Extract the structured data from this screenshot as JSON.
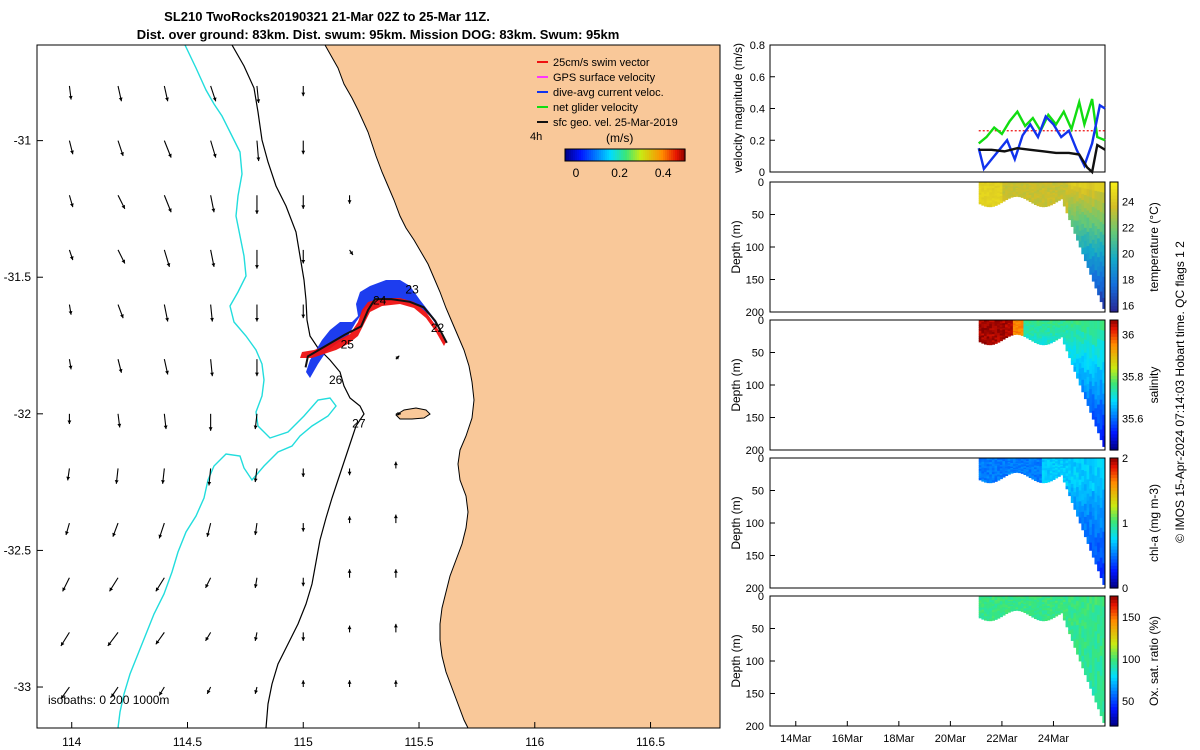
{
  "title_line1": "SL210 TwoRocks20190321 21-Mar 02Z to 25-Mar 11Z.",
  "title_line2": "Dist. over ground: 83km. Dist. swum: 95km. Mission DOG: 83km. Swum: 95km",
  "credit": "© IMOS 15-Apr-2024 07:14:03 Hobart time. QC flags 1 2",
  "colors": {
    "land": "#F9C899",
    "isobath_200": "#000000",
    "isobath_1000": "#22DDDD",
    "swim_vector": "#EE1111",
    "gps_velocity": "#FF33FF",
    "dive_avg_current": "#1133EE",
    "net_glider": "#11DD11",
    "sfc_geo_vel": "#111111"
  },
  "chart_data": [
    {
      "type": "map",
      "name": "track-map",
      "x_ticks": [
        "114",
        "114.5",
        "115",
        "115.5",
        "116",
        "116.5"
      ],
      "x_tick_values": [
        114,
        114.5,
        115,
        115.5,
        116,
        116.5
      ],
      "y_ticks": [
        "-31",
        "-31.5",
        "-32",
        "-32.5",
        "-33"
      ],
      "y_tick_values": [
        -31,
        -31.5,
        -32,
        -32.5,
        -33
      ],
      "xlim": [
        113.85,
        116.8
      ],
      "ylim": [
        -33.15,
        -30.65
      ],
      "legend": {
        "position": "top-right",
        "entries": [
          {
            "label": "25cm/s swim vector",
            "color_key": "swim_vector"
          },
          {
            "label": "GPS surface velocity",
            "color_key": "gps_velocity"
          },
          {
            "label": "dive-avg current veloc.",
            "color_key": "dive_avg_current"
          },
          {
            "label": "net glider velocity",
            "color_key": "net_glider"
          },
          {
            "label": "sfc geo. vel. 25-Mar-2019",
            "color_key": "sfc_geo_vel"
          }
        ]
      },
      "vector_stride_label": "4h",
      "colorbar": {
        "label": "(m/s)",
        "ticks": [
          "0",
          "0.2",
          "0.4"
        ],
        "tick_values": [
          0,
          0.2,
          0.4
        ],
        "range": [
          -0.05,
          0.5
        ]
      },
      "isobath_label": "isobaths: 0   200  1000m",
      "day_labels": [
        {
          "text": "22",
          "lon": 115.58,
          "lat": -31.7
        },
        {
          "text": "23",
          "lon": 115.47,
          "lat": -31.56
        },
        {
          "text": "24",
          "lon": 115.33,
          "lat": -31.6
        },
        {
          "text": "25",
          "lon": 115.19,
          "lat": -31.76
        },
        {
          "text": "26",
          "lon": 115.14,
          "lat": -31.89
        },
        {
          "text": "27",
          "lon": 115.24,
          "lat": -32.05
        }
      ],
      "track": [
        [
          115.62,
          -31.74
        ],
        [
          115.57,
          -31.66
        ],
        [
          115.52,
          -31.61
        ],
        [
          115.46,
          -31.59
        ],
        [
          115.38,
          -31.58
        ],
        [
          115.31,
          -31.58
        ],
        [
          115.28,
          -31.62
        ],
        [
          115.25,
          -31.68
        ],
        [
          115.18,
          -31.71
        ],
        [
          115.1,
          -31.75
        ],
        [
          115.02,
          -31.79
        ],
        [
          115.01,
          -31.83
        ]
      ],
      "vectors": [
        {
          "lon": 113.99,
          "lat": -30.8,
          "u": 0.01,
          "v": -0.08
        },
        {
          "lon": 114.2,
          "lat": -30.8,
          "u": 0.02,
          "v": -0.09
        },
        {
          "lon": 114.4,
          "lat": -30.8,
          "u": 0.02,
          "v": -0.09
        },
        {
          "lon": 114.6,
          "lat": -30.8,
          "u": 0.03,
          "v": -0.09
        },
        {
          "lon": 114.8,
          "lat": -30.8,
          "u": 0.01,
          "v": -0.1
        },
        {
          "lon": 115,
          "lat": -30.8,
          "u": 0.0,
          "v": -0.06
        },
        {
          "lon": 113.99,
          "lat": -31.0,
          "u": 0.02,
          "v": -0.08
        },
        {
          "lon": 114.2,
          "lat": -31.0,
          "u": 0.03,
          "v": -0.09
        },
        {
          "lon": 114.4,
          "lat": -31.0,
          "u": 0.04,
          "v": -0.1
        },
        {
          "lon": 114.6,
          "lat": -31.0,
          "u": 0.03,
          "v": -0.1
        },
        {
          "lon": 114.8,
          "lat": -31.0,
          "u": 0.01,
          "v": -0.12
        },
        {
          "lon": 115,
          "lat": -31.0,
          "u": 0.0,
          "v": -0.08
        },
        {
          "lon": 113.99,
          "lat": -31.2,
          "u": 0.02,
          "v": -0.07
        },
        {
          "lon": 114.2,
          "lat": -31.2,
          "u": 0.04,
          "v": -0.08
        },
        {
          "lon": 114.4,
          "lat": -31.2,
          "u": 0.04,
          "v": -0.1
        },
        {
          "lon": 114.6,
          "lat": -31.2,
          "u": 0.02,
          "v": -0.1
        },
        {
          "lon": 114.8,
          "lat": -31.2,
          "u": 0.0,
          "v": -0.11
        },
        {
          "lon": 115,
          "lat": -31.2,
          "u": 0.0,
          "v": -0.08
        },
        {
          "lon": 115.2,
          "lat": -31.2,
          "u": 0.0,
          "v": -0.05
        },
        {
          "lon": 113.99,
          "lat": -31.4,
          "u": 0.02,
          "v": -0.06
        },
        {
          "lon": 114.2,
          "lat": -31.4,
          "u": 0.04,
          "v": -0.08
        },
        {
          "lon": 114.4,
          "lat": -31.4,
          "u": 0.03,
          "v": -0.1
        },
        {
          "lon": 114.6,
          "lat": -31.4,
          "u": 0.02,
          "v": -0.1
        },
        {
          "lon": 114.8,
          "lat": -31.4,
          "u": 0.0,
          "v": -0.11
        },
        {
          "lon": 115,
          "lat": -31.4,
          "u": 0.0,
          "v": -0.08
        },
        {
          "lon": 115.2,
          "lat": -31.4,
          "u": 0.02,
          "v": -0.03
        },
        {
          "lon": 113.99,
          "lat": -31.6,
          "u": 0.01,
          "v": -0.06
        },
        {
          "lon": 114.2,
          "lat": -31.6,
          "u": 0.03,
          "v": -0.08
        },
        {
          "lon": 114.4,
          "lat": -31.6,
          "u": 0.02,
          "v": -0.1
        },
        {
          "lon": 114.6,
          "lat": -31.6,
          "u": 0.01,
          "v": -0.1
        },
        {
          "lon": 114.8,
          "lat": -31.6,
          "u": 0.0,
          "v": -0.1
        },
        {
          "lon": 115,
          "lat": -31.6,
          "u": 0.0,
          "v": -0.08
        },
        {
          "lon": 113.99,
          "lat": -31.8,
          "u": 0.01,
          "v": -0.06
        },
        {
          "lon": 114.2,
          "lat": -31.8,
          "u": 0.02,
          "v": -0.08
        },
        {
          "lon": 114.4,
          "lat": -31.8,
          "u": 0.02,
          "v": -0.09
        },
        {
          "lon": 114.6,
          "lat": -31.8,
          "u": 0.01,
          "v": -0.1
        },
        {
          "lon": 114.8,
          "lat": -31.8,
          "u": 0.0,
          "v": -0.1
        },
        {
          "lon": 115.4,
          "lat": -31.8,
          "u": 0.02,
          "v": 0.02
        },
        {
          "lon": 113.99,
          "lat": -32.0,
          "u": 0.0,
          "v": -0.06
        },
        {
          "lon": 114.2,
          "lat": -32.0,
          "u": 0.01,
          "v": -0.08
        },
        {
          "lon": 114.4,
          "lat": -32.0,
          "u": 0.01,
          "v": -0.09
        },
        {
          "lon": 114.6,
          "lat": -32.0,
          "u": 0.0,
          "v": -0.1
        },
        {
          "lon": 114.8,
          "lat": -32.0,
          "u": -0.01,
          "v": -0.09
        },
        {
          "lon": 115.4,
          "lat": -32.0,
          "u": 0.03,
          "v": 0.0
        },
        {
          "lon": 113.99,
          "lat": -32.2,
          "u": -0.01,
          "v": -0.07
        },
        {
          "lon": 114.2,
          "lat": -32.2,
          "u": -0.01,
          "v": -0.09
        },
        {
          "lon": 114.4,
          "lat": -32.2,
          "u": -0.01,
          "v": -0.09
        },
        {
          "lon": 114.6,
          "lat": -32.2,
          "u": -0.01,
          "v": -0.1
        },
        {
          "lon": 114.8,
          "lat": -32.2,
          "u": -0.01,
          "v": -0.08
        },
        {
          "lon": 115,
          "lat": -32.2,
          "u": 0.0,
          "v": -0.05
        },
        {
          "lon": 115.2,
          "lat": -32.2,
          "u": 0.0,
          "v": -0.04
        },
        {
          "lon": 115.4,
          "lat": -32.2,
          "u": 0.0,
          "v": 0.04
        },
        {
          "lon": 113.99,
          "lat": -32.4,
          "u": -0.02,
          "v": -0.07
        },
        {
          "lon": 114.2,
          "lat": -32.4,
          "u": -0.03,
          "v": -0.08
        },
        {
          "lon": 114.4,
          "lat": -32.4,
          "u": -0.03,
          "v": -0.09
        },
        {
          "lon": 114.6,
          "lat": -32.4,
          "u": -0.02,
          "v": -0.08
        },
        {
          "lon": 114.8,
          "lat": -32.4,
          "u": -0.01,
          "v": -0.07
        },
        {
          "lon": 115,
          "lat": -32.4,
          "u": 0.0,
          "v": -0.05
        },
        {
          "lon": 115.2,
          "lat": -32.4,
          "u": 0.0,
          "v": 0.04
        },
        {
          "lon": 115.4,
          "lat": -32.4,
          "u": 0.0,
          "v": 0.05
        },
        {
          "lon": 113.99,
          "lat": -32.6,
          "u": -0.04,
          "v": -0.08
        },
        {
          "lon": 114.2,
          "lat": -32.6,
          "u": -0.05,
          "v": -0.08
        },
        {
          "lon": 114.4,
          "lat": -32.6,
          "u": -0.05,
          "v": -0.08
        },
        {
          "lon": 114.6,
          "lat": -32.6,
          "u": -0.03,
          "v": -0.06
        },
        {
          "lon": 114.8,
          "lat": -32.6,
          "u": -0.01,
          "v": -0.06
        },
        {
          "lon": 115,
          "lat": -32.6,
          "u": 0.0,
          "v": -0.05
        },
        {
          "lon": 115.2,
          "lat": -32.6,
          "u": 0.0,
          "v": 0.05
        },
        {
          "lon": 115.4,
          "lat": -32.6,
          "u": 0.0,
          "v": 0.05
        },
        {
          "lon": 113.99,
          "lat": -32.8,
          "u": -0.05,
          "v": -0.08
        },
        {
          "lon": 114.2,
          "lat": -32.8,
          "u": -0.06,
          "v": -0.08
        },
        {
          "lon": 114.4,
          "lat": -32.8,
          "u": -0.05,
          "v": -0.07
        },
        {
          "lon": 114.6,
          "lat": -32.8,
          "u": -0.03,
          "v": -0.05
        },
        {
          "lon": 114.8,
          "lat": -32.8,
          "u": -0.01,
          "v": -0.05
        },
        {
          "lon": 115,
          "lat": -32.8,
          "u": 0.0,
          "v": -0.05
        },
        {
          "lon": 115.2,
          "lat": -32.8,
          "u": 0.0,
          "v": 0.04
        },
        {
          "lon": 115.4,
          "lat": -32.8,
          "u": 0.0,
          "v": 0.05
        },
        {
          "lon": 113.99,
          "lat": -33.0,
          "u": -0.05,
          "v": -0.07
        },
        {
          "lon": 114.2,
          "lat": -33.0,
          "u": -0.04,
          "v": -0.06
        },
        {
          "lon": 114.4,
          "lat": -33.0,
          "u": -0.03,
          "v": -0.05
        },
        {
          "lon": 114.6,
          "lat": -33.0,
          "u": -0.02,
          "v": -0.04
        },
        {
          "lon": 114.8,
          "lat": -33.0,
          "u": -0.01,
          "v": -0.04
        },
        {
          "lon": 115,
          "lat": -33.0,
          "u": 0.0,
          "v": 0.04
        },
        {
          "lon": 115.2,
          "lat": -33.0,
          "u": 0.0,
          "v": 0.04
        },
        {
          "lon": 115.4,
          "lat": -33.0,
          "u": 0.0,
          "v": 0.04
        }
      ]
    },
    {
      "type": "line",
      "name": "velocity-magnitude",
      "ylabel": "velocity magnitude (m/s)",
      "ylim": [
        0,
        0.8
      ],
      "y_ticks": [
        "0",
        "0.2",
        "0.4",
        "0.6",
        "0.8"
      ],
      "y_tick_values": [
        0,
        0.2,
        0.4,
        0.6,
        0.8
      ],
      "x_day_range": [
        13,
        26
      ],
      "series": [
        {
          "color_key": "swim_vector",
          "x": [
            21.1,
            26
          ],
          "y": [
            0.26,
            0.26
          ]
        },
        {
          "color_key": "net_glider",
          "x": [
            21.1,
            21.4,
            21.7,
            22.0,
            22.3,
            22.6,
            22.9,
            23.2,
            23.5,
            23.8,
            24.1,
            24.4,
            24.7,
            25.0,
            25.2,
            25.5,
            25.7,
            26.0
          ],
          "y": [
            0.18,
            0.22,
            0.28,
            0.24,
            0.32,
            0.38,
            0.29,
            0.34,
            0.26,
            0.36,
            0.3,
            0.38,
            0.27,
            0.44,
            0.3,
            0.46,
            0.22,
            0.2
          ]
        },
        {
          "color_key": "dive_avg_current",
          "x": [
            21.1,
            21.3,
            21.6,
            21.9,
            22.2,
            22.5,
            22.8,
            23.1,
            23.4,
            23.7,
            24.0,
            24.3,
            24.6,
            24.9,
            25.2,
            25.5,
            25.8,
            26.0
          ],
          "y": [
            0.15,
            0.02,
            0.08,
            0.14,
            0.2,
            0.08,
            0.23,
            0.3,
            0.22,
            0.35,
            0.3,
            0.22,
            0.26,
            0.14,
            0.04,
            0.18,
            0.42,
            0.4
          ]
        },
        {
          "color_key": "sfc_geo_vel",
          "x": [
            21.1,
            21.6,
            22.1,
            22.6,
            23.1,
            23.6,
            24.1,
            24.6,
            25.0,
            25.3,
            25.5,
            25.7,
            26.0
          ],
          "y": [
            0.14,
            0.14,
            0.13,
            0.15,
            0.14,
            0.13,
            0.12,
            0.12,
            0.11,
            0.03,
            0.0,
            0.17,
            0.14
          ]
        }
      ]
    },
    {
      "type": "heatmap",
      "name": "temperature-section",
      "ylabel": "Depth (m)",
      "ylim": [
        0,
        200
      ],
      "y_ticks": [
        "0",
        "50",
        "100",
        "150",
        "200"
      ],
      "y_tick_values": [
        0,
        50,
        100,
        150,
        200
      ],
      "colorbar_label": "temperature (°C)",
      "colorbar_ticks": [
        "16",
        "18",
        "20",
        "22",
        "24"
      ],
      "colorbar_tick_values": [
        16,
        18,
        20,
        22,
        24
      ],
      "colorbar_range": [
        15.5,
        25.5
      ],
      "colormap": "parula",
      "surface_value": 24.5,
      "deep_value": 16.3
    },
    {
      "type": "heatmap",
      "name": "salinity-section",
      "ylabel": "Depth (m)",
      "ylim": [
        0,
        200
      ],
      "y_ticks": [
        "0",
        "50",
        "100",
        "150",
        "200"
      ],
      "y_tick_values": [
        0,
        50,
        100,
        150,
        200
      ],
      "colorbar_label": "salinity",
      "colorbar_ticks": [
        "35.6",
        "35.8",
        "36"
      ],
      "colorbar_tick_values": [
        35.6,
        35.8,
        36.0
      ],
      "colorbar_range": [
        35.45,
        36.07
      ],
      "colormap": "jet",
      "surface_value": 35.8,
      "deep_value": 35.7
    },
    {
      "type": "heatmap",
      "name": "chlorophyll-section",
      "ylabel": "Depth (m)",
      "ylim": [
        0,
        200
      ],
      "y_ticks": [
        "0",
        "50",
        "100",
        "150",
        "200"
      ],
      "y_tick_values": [
        0,
        50,
        100,
        150,
        200
      ],
      "colorbar_label": "chl-a (mg m-3)",
      "colorbar_ticks": [
        "0",
        "1",
        "2"
      ],
      "colorbar_tick_values": [
        0,
        1,
        2
      ],
      "colorbar_range": [
        0,
        2
      ],
      "colormap": "jet",
      "surface_value": 0.6,
      "deep_value": 0.1
    },
    {
      "type": "heatmap",
      "name": "oxygen-section",
      "ylabel": "Depth (m)",
      "ylim": [
        0,
        200
      ],
      "y_ticks": [
        "0",
        "50",
        "100",
        "150",
        "200"
      ],
      "y_tick_values": [
        0,
        50,
        100,
        150,
        200
      ],
      "colorbar_label": "Ox. sat. ratio (%)",
      "colorbar_ticks": [
        "50",
        "100",
        "150"
      ],
      "colorbar_tick_values": [
        50,
        100,
        150
      ],
      "colorbar_range": [
        20,
        175
      ],
      "colormap": "jet",
      "surface_value": 97,
      "deep_value": 92
    }
  ],
  "time_axis": {
    "ticks": [
      "14Mar",
      "16Mar",
      "18Mar",
      "20Mar",
      "22Mar",
      "24Mar"
    ],
    "tick_days": [
      14,
      16,
      18,
      20,
      22,
      24
    ],
    "range_days": [
      13,
      26
    ],
    "data_start_day": 21.1,
    "data_end_day": 26
  }
}
